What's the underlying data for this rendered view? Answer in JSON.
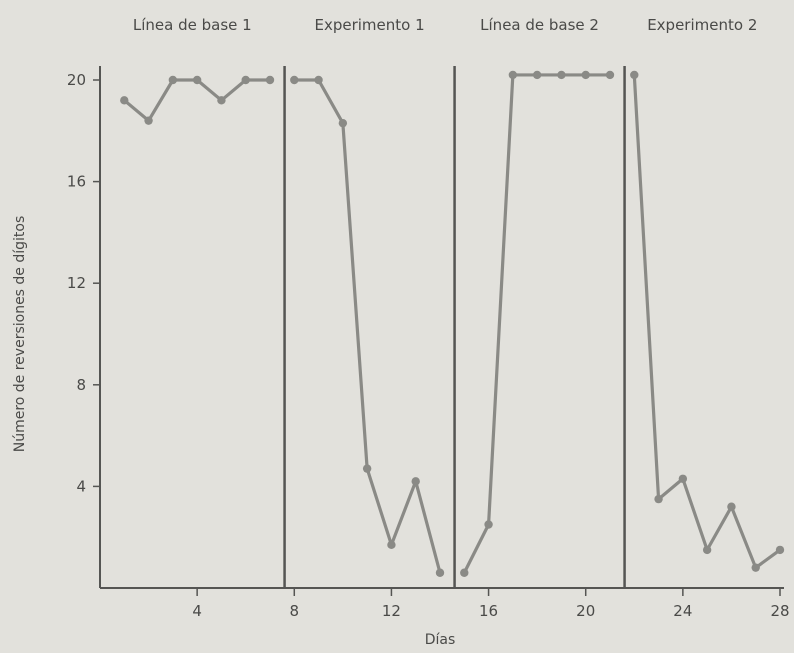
{
  "chart_data": {
    "type": "line",
    "title": "",
    "xlabel": "Días",
    "ylabel": "Número de reversiones de dígitos",
    "xlim": [
      0,
      28
    ],
    "ylim": [
      0,
      20
    ],
    "xticks": [
      4,
      8,
      12,
      16,
      20,
      24,
      28
    ],
    "yticks": [
      4,
      8,
      12,
      16,
      20
    ],
    "grid": false,
    "colors": {
      "line": "#8a8a86",
      "axis": "#555553",
      "divider": "#555553"
    },
    "phases": [
      {
        "name": "Línea de base 1",
        "start": 0,
        "end": 7.6
      },
      {
        "name": "Experimento 1",
        "start": 7.6,
        "end": 14.6
      },
      {
        "name": "Línea de base 2",
        "start": 14.6,
        "end": 21.6
      },
      {
        "name": "Experimento 2",
        "start": 21.6,
        "end": 28
      }
    ],
    "dividers": [
      7.6,
      14.6,
      21.6
    ],
    "segments": [
      {
        "x": [
          1,
          2,
          3,
          4,
          5,
          6,
          7
        ],
        "y": [
          19.2,
          18.4,
          20,
          20,
          19.2,
          20,
          20
        ]
      },
      {
        "x": [
          8,
          9,
          10,
          11,
          12,
          13,
          14
        ],
        "y": [
          20,
          20,
          18.3,
          4.7,
          1.7,
          4.2,
          0.6
        ]
      },
      {
        "x": [
          15,
          16,
          17,
          18,
          19,
          20,
          21
        ],
        "y": [
          0.6,
          2.5,
          20.2,
          20.2,
          20.2,
          20.2,
          20.2
        ]
      },
      {
        "x": [
          22,
          23,
          24,
          25,
          26,
          27,
          28
        ],
        "y": [
          20.2,
          3.5,
          4.3,
          1.5,
          3.2,
          0.8,
          1.5
        ]
      }
    ]
  }
}
